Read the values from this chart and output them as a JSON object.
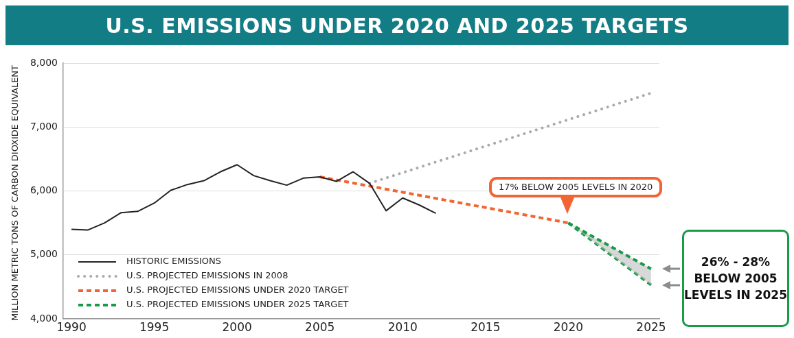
{
  "chart_data": {
    "type": "line",
    "title": "U.S. EMISSIONS UNDER 2020 AND 2025 TARGETS",
    "ylabel": "MILLION METRIC TONS OF CARBON DIOXIDE EQUIVALENT",
    "xlim": [
      1989.5,
      2025.5
    ],
    "xticks": [
      1990,
      1995,
      2000,
      2005,
      2010,
      2015,
      2020,
      2025
    ],
    "ylim": [
      4000,
      8000
    ],
    "yticks": [
      {
        "value": 4000,
        "label": "4,000"
      },
      {
        "value": 5000,
        "label": "5,000"
      },
      {
        "value": 6000,
        "label": "6,000"
      },
      {
        "value": 7000,
        "label": "7,000"
      },
      {
        "value": 8000,
        "label": "8,000"
      }
    ],
    "grid": "y",
    "legend": "bottom left",
    "marker": "none",
    "series": [
      {
        "name": "HISTORIC EMISSIONS",
        "color": "#222222",
        "line_style": "solid",
        "x": [
          1990,
          1991,
          1992,
          1993,
          1994,
          1995,
          1996,
          1997,
          1998,
          1999,
          2000,
          2001,
          2002,
          2003,
          2004,
          2005,
          2006,
          2007,
          2008,
          2009,
          2010,
          2011,
          2012
        ],
        "values": [
          5400,
          5390,
          5500,
          5660,
          5680,
          5810,
          6010,
          6100,
          6160,
          6300,
          6410,
          6240,
          6160,
          6090,
          6200,
          6220,
          6150,
          6300,
          6120,
          5690,
          5890,
          5780,
          5650
        ]
      },
      {
        "name": "U.S. PROJECTED EMISSIONS IN 2008",
        "color": "#aaaaaa",
        "line_style": "dotted",
        "x": [
          2008,
          2025
        ],
        "values": [
          6120,
          7530
        ]
      },
      {
        "name": "U.S. PROJECTED EMISSIONS UNDER 2020 TARGET",
        "color": "#f26532",
        "line_style": "dashed",
        "x": [
          2005,
          2020
        ],
        "values": [
          6220,
          5500
        ]
      },
      {
        "name": "U.S. PROJECTED EMISSIONS UNDER 2025 TARGET",
        "color": "#1a9a48",
        "line_style": "dashed",
        "x": [
          2020,
          2025
        ],
        "values": [
          5500,
          4780
        ],
        "lower": [
          5500,
          4530
        ],
        "upper": [
          5500,
          4780
        ]
      },
      {
        "color": "#1a9a48",
        "line_style": "dashed",
        "x": [
          2020,
          2025
        ],
        "values": [
          5500,
          4530
        ]
      }
    ],
    "annotations": [
      "17% BELOW 2005 LEVELS IN 2020",
      "26% - 28% BELOW 2005 LEVELS IN 2025"
    ]
  }
}
